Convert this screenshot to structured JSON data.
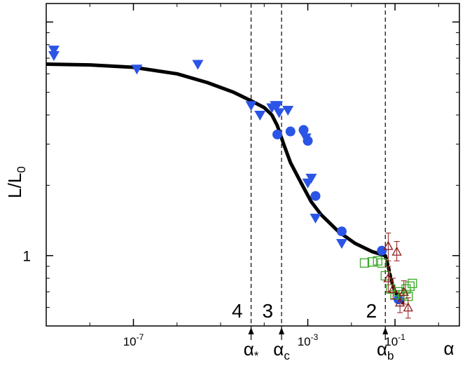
{
  "chart_data": {
    "type": "scatter",
    "title": "",
    "xlabel": "α",
    "ylabel": "L/L0",
    "ylabel_main": "L/L",
    "ylabel_sub": "0",
    "x_scale": "log",
    "y_scale": "log",
    "xlim": [
      1e-09,
      3
    ],
    "ylim": [
      0.5,
      12
    ],
    "x_ticks": [
      {
        "value": 1e-07,
        "label": "10",
        "exp": "-7"
      },
      {
        "value": 0.001,
        "label": "10",
        "exp": "-3"
      },
      {
        "value": 0.1,
        "label": "10",
        "exp": "-1"
      }
    ],
    "y_ticks": [
      {
        "value": 1,
        "label": "1"
      }
    ],
    "vertical_lines": [
      {
        "x": 5e-05,
        "label_main": "α",
        "label_sub": "*",
        "region": "4"
      },
      {
        "x": 0.00025,
        "label_main": "α",
        "label_sub": "c",
        "region": "3"
      },
      {
        "x": 0.06,
        "label_main": "α",
        "label_sub": "b",
        "region": "2"
      }
    ],
    "curve": {
      "style": "solid",
      "points": [
        [
          1e-09,
          6.6
        ],
        [
          1e-08,
          6.55
        ],
        [
          1e-07,
          6.4
        ],
        [
          1e-06,
          6.0
        ],
        [
          5e-06,
          5.5
        ],
        [
          2e-05,
          5.0
        ],
        [
          5e-05,
          4.6
        ],
        [
          0.0001,
          4.3
        ],
        [
          0.00015,
          4.0
        ],
        [
          0.0002,
          3.6
        ],
        [
          0.00028,
          3.0
        ],
        [
          0.0004,
          2.5
        ],
        [
          0.0007,
          2.05
        ],
        [
          0.0012,
          1.7
        ],
        [
          0.002,
          1.5
        ],
        [
          0.005,
          1.27
        ],
        [
          0.012,
          1.13
        ],
        [
          0.03,
          1.04
        ],
        [
          0.06,
          1.0
        ]
      ]
    },
    "curve_dashed": {
      "style": "dotted",
      "points": [
        [
          0.06,
          1.0
        ],
        [
          0.07,
          0.9
        ],
        [
          0.08,
          0.8
        ],
        [
          0.095,
          0.72
        ],
        [
          0.12,
          0.66
        ],
        [
          0.15,
          0.63
        ]
      ]
    },
    "series": [
      {
        "marker": "triangle-down-filled",
        "color": "#2b55e6",
        "points": [
          [
            1.5e-09,
            7.6
          ],
          [
            1.5e-09,
            7.2
          ],
          [
            1.2e-07,
            6.3
          ],
          [
            3e-06,
            6.6
          ],
          [
            5e-05,
            4.4
          ],
          [
            8e-05,
            4.0
          ],
          [
            0.00015,
            4.3
          ],
          [
            0.00018,
            4.4
          ],
          [
            0.0002,
            4.4
          ],
          [
            0.00022,
            4.1
          ],
          [
            0.00035,
            4.2
          ],
          [
            0.0009,
            3.2
          ],
          [
            0.001,
            2.05
          ],
          [
            0.0012,
            2.15
          ],
          [
            0.0015,
            1.45
          ],
          [
            0.006,
            1.13
          ]
        ]
      },
      {
        "marker": "circle-filled",
        "color": "#2b55e6",
        "points": [
          [
            0.0002,
            3.3
          ],
          [
            0.0004,
            3.4
          ],
          [
            0.0008,
            3.45
          ],
          [
            0.001,
            3.1
          ],
          [
            0.0015,
            1.8
          ],
          [
            0.006,
            1.27
          ],
          [
            0.05,
            1.05
          ],
          [
            0.12,
            0.65
          ]
        ]
      },
      {
        "marker": "square-open",
        "color": "#3aa828",
        "points": [
          [
            0.02,
            0.93
          ],
          [
            0.03,
            0.94
          ],
          [
            0.04,
            0.95
          ],
          [
            0.05,
            0.93
          ],
          [
            0.06,
            0.82
          ],
          [
            0.08,
            0.72
          ],
          [
            0.1,
            0.68
          ],
          [
            0.12,
            0.7
          ],
          [
            0.15,
            0.68
          ],
          [
            0.18,
            0.72
          ],
          [
            0.22,
            0.74
          ],
          [
            0.25,
            0.76
          ],
          [
            0.2,
            0.67
          ]
        ]
      },
      {
        "marker": "triangle-up-open",
        "color": "#8b1a1a",
        "error_bars": true,
        "points": [
          [
            0.07,
            1.1,
            0.95,
            1.25
          ],
          [
            0.07,
            0.8,
            0.7,
            0.9
          ],
          [
            0.09,
            0.72,
            0.65,
            0.8
          ],
          [
            0.11,
            1.04,
            0.95,
            1.15
          ],
          [
            0.13,
            0.63,
            0.57,
            0.69
          ],
          [
            0.16,
            0.7,
            0.62,
            0.78
          ],
          [
            0.2,
            0.6,
            0.54,
            0.66
          ]
        ]
      }
    ]
  }
}
